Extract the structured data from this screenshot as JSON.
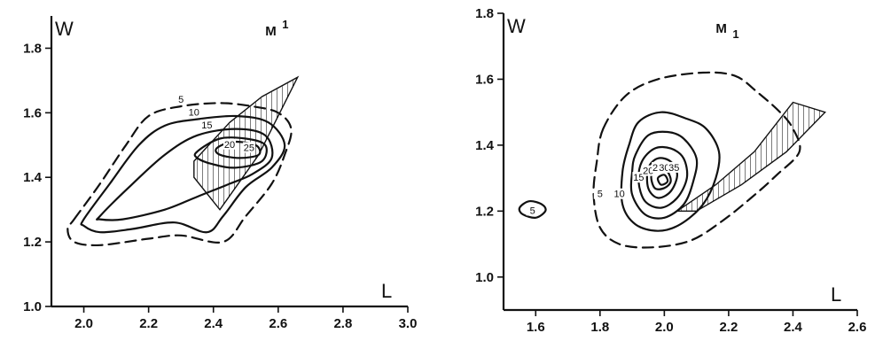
{
  "chart_data": [
    {
      "type": "contour",
      "title": "M",
      "title_marker": "1",
      "title_marker_position": "superscript",
      "xlabel": "L",
      "ylabel": "W",
      "xlim": [
        1.9,
        3.0
      ],
      "ylim": [
        1.0,
        1.9
      ],
      "xticks": [
        2.0,
        2.2,
        2.4,
        2.6,
        2.8,
        3.0
      ],
      "yticks": [
        1.0,
        1.2,
        1.4,
        1.6,
        1.8
      ],
      "xtick_labels": [
        "2.0",
        "2.2",
        "2.4",
        "2.6",
        "2.8",
        "3.0"
      ],
      "ytick_labels": [
        "1.0",
        "1.2",
        "1.4",
        "1.6",
        "1.8"
      ],
      "contours": [
        {
          "level": "5",
          "dashed": true,
          "points": [
            [
              1.97,
              1.27
            ],
            [
              2.05,
              1.38
            ],
            [
              2.13,
              1.5
            ],
            [
              2.2,
              1.59
            ],
            [
              2.3,
              1.62
            ],
            [
              2.42,
              1.63
            ],
            [
              2.52,
              1.62
            ],
            [
              2.6,
              1.6
            ],
            [
              2.64,
              1.55
            ],
            [
              2.62,
              1.47
            ],
            [
              2.58,
              1.38
            ],
            [
              2.5,
              1.28
            ],
            [
              2.43,
              1.2
            ],
            [
              2.3,
              1.22
            ],
            [
              2.2,
              1.21
            ],
            [
              2.05,
              1.19
            ],
            [
              1.97,
              1.2
            ],
            [
              1.95,
              1.24
            ]
          ]
        },
        {
          "level": "10",
          "dashed": false,
          "points": [
            [
              2.0,
              1.27
            ],
            [
              2.08,
              1.38
            ],
            [
              2.17,
              1.5
            ],
            [
              2.25,
              1.56
            ],
            [
              2.35,
              1.58
            ],
            [
              2.47,
              1.59
            ],
            [
              2.57,
              1.57
            ],
            [
              2.62,
              1.5
            ],
            [
              2.58,
              1.43
            ],
            [
              2.5,
              1.37
            ],
            [
              2.43,
              1.28
            ],
            [
              2.38,
              1.23
            ],
            [
              2.28,
              1.26
            ],
            [
              2.15,
              1.24
            ],
            [
              2.05,
              1.23
            ],
            [
              2.0,
              1.25
            ]
          ]
        },
        {
          "level": "15",
          "dashed": false,
          "points": [
            [
              2.05,
              1.28
            ],
            [
              2.14,
              1.37
            ],
            [
              2.25,
              1.47
            ],
            [
              2.35,
              1.53
            ],
            [
              2.47,
              1.55
            ],
            [
              2.56,
              1.53
            ],
            [
              2.58,
              1.46
            ],
            [
              2.52,
              1.41
            ],
            [
              2.45,
              1.38
            ],
            [
              2.35,
              1.34
            ],
            [
              2.25,
              1.3
            ],
            [
              2.12,
              1.27
            ],
            [
              2.05,
              1.27
            ]
          ]
        },
        {
          "level": "20",
          "dashed": false,
          "points": [
            [
              2.35,
              1.48
            ],
            [
              2.42,
              1.52
            ],
            [
              2.5,
              1.52
            ],
            [
              2.56,
              1.5
            ],
            [
              2.55,
              1.45
            ],
            [
              2.47,
              1.43
            ],
            [
              2.4,
              1.44
            ],
            [
              2.35,
              1.46
            ]
          ]
        },
        {
          "level": "25",
          "dashed": false,
          "points": [
            [
              2.41,
              1.49
            ],
            [
              2.46,
              1.51
            ],
            [
              2.53,
              1.5
            ],
            [
              2.54,
              1.47
            ],
            [
              2.48,
              1.46
            ],
            [
              2.42,
              1.47
            ]
          ]
        }
      ],
      "contour_label_positions": [
        [
          2.3,
          1.64
        ],
        [
          2.34,
          1.6
        ],
        [
          2.38,
          1.56
        ],
        [
          2.45,
          1.5
        ],
        [
          2.51,
          1.49
        ]
      ],
      "hatched_region": [
        [
          2.34,
          1.45
        ],
        [
          2.45,
          1.57
        ],
        [
          2.55,
          1.65
        ],
        [
          2.66,
          1.71
        ],
        [
          2.54,
          1.47
        ],
        [
          2.42,
          1.3
        ],
        [
          2.34,
          1.4
        ]
      ]
    },
    {
      "type": "contour",
      "title": "M",
      "title_marker": "1",
      "title_marker_position": "subscript",
      "xlabel": "L",
      "ylabel": "W",
      "xlim": [
        1.5,
        2.6
      ],
      "ylim": [
        0.9,
        1.8
      ],
      "xticks": [
        1.6,
        1.8,
        2.0,
        2.2,
        2.4,
        2.6
      ],
      "yticks": [
        1.0,
        1.2,
        1.4,
        1.6,
        1.8
      ],
      "xtick_labels": [
        "1.6",
        "1.8",
        "2.0",
        "2.2",
        "2.4",
        "2.6"
      ],
      "ytick_labels": [
        "1.0",
        "1.2",
        "1.4",
        "1.6",
        "1.8"
      ],
      "contours": [
        {
          "level": "5",
          "dashed": true,
          "points": [
            [
              1.81,
              1.45
            ],
            [
              1.88,
              1.55
            ],
            [
              1.98,
              1.6
            ],
            [
              2.12,
              1.62
            ],
            [
              2.22,
              1.61
            ],
            [
              2.29,
              1.56
            ],
            [
              2.36,
              1.5
            ],
            [
              2.4,
              1.45
            ],
            [
              2.42,
              1.38
            ],
            [
              2.35,
              1.31
            ],
            [
              2.27,
              1.24
            ],
            [
              2.18,
              1.17
            ],
            [
              2.08,
              1.11
            ],
            [
              1.96,
              1.09
            ],
            [
              1.86,
              1.1
            ],
            [
              1.8,
              1.15
            ],
            [
              1.78,
              1.25
            ],
            [
              1.79,
              1.35
            ]
          ]
        },
        {
          "level": "10",
          "dashed": false,
          "points": [
            [
              1.89,
              1.4
            ],
            [
              1.92,
              1.47
            ],
            [
              1.99,
              1.5
            ],
            [
              2.07,
              1.48
            ],
            [
              2.13,
              1.45
            ],
            [
              2.17,
              1.38
            ],
            [
              2.16,
              1.3
            ],
            [
              2.12,
              1.22
            ],
            [
              2.05,
              1.16
            ],
            [
              1.98,
              1.14
            ],
            [
              1.91,
              1.16
            ],
            [
              1.87,
              1.22
            ],
            [
              1.87,
              1.32
            ]
          ]
        },
        {
          "level": "15",
          "dashed": false,
          "points": [
            [
              1.91,
              1.37
            ],
            [
              1.95,
              1.43
            ],
            [
              2.01,
              1.44
            ],
            [
              2.06,
              1.42
            ],
            [
              2.1,
              1.36
            ],
            [
              2.09,
              1.29
            ],
            [
              2.06,
              1.22
            ],
            [
              2.0,
              1.18
            ],
            [
              1.94,
              1.19
            ],
            [
              1.9,
              1.25
            ],
            [
              1.9,
              1.32
            ]
          ]
        },
        {
          "level": "20",
          "dashed": false,
          "points": [
            [
              1.93,
              1.35
            ],
            [
              1.97,
              1.39
            ],
            [
              2.02,
              1.39
            ],
            [
              2.06,
              1.36
            ],
            [
              2.07,
              1.3
            ],
            [
              2.04,
              1.24
            ],
            [
              1.99,
              1.21
            ],
            [
              1.94,
              1.23
            ],
            [
              1.92,
              1.29
            ]
          ]
        },
        {
          "level": "25",
          "dashed": false,
          "points": [
            [
              1.95,
              1.33
            ],
            [
              1.98,
              1.36
            ],
            [
              2.02,
              1.35
            ],
            [
              2.04,
              1.31
            ],
            [
              2.02,
              1.26
            ],
            [
              1.98,
              1.24
            ],
            [
              1.95,
              1.27
            ]
          ]
        },
        {
          "level": "30",
          "dashed": false,
          "points": [
            [
              1.96,
              1.31
            ],
            [
              1.99,
              1.33
            ],
            [
              2.01,
              1.32
            ],
            [
              2.02,
              1.29
            ],
            [
              2.0,
              1.27
            ],
            [
              1.97,
              1.27
            ]
          ]
        },
        {
          "level": "35",
          "dashed": false,
          "points": [
            [
              1.98,
              1.3
            ],
            [
              2.0,
              1.31
            ],
            [
              2.01,
              1.29
            ],
            [
              1.99,
              1.28
            ]
          ]
        },
        {
          "level": "5",
          "dashed": false,
          "points": [
            [
              1.55,
              1.21
            ],
            [
              1.58,
              1.23
            ],
            [
              1.62,
              1.22
            ],
            [
              1.63,
              1.2
            ],
            [
              1.6,
              1.18
            ],
            [
              1.56,
              1.19
            ]
          ]
        }
      ],
      "contour_label_positions": [
        [
          1.8,
          1.25
        ],
        [
          1.86,
          1.25
        ],
        [
          1.92,
          1.3
        ],
        [
          1.95,
          1.32
        ],
        [
          1.98,
          1.33
        ],
        [
          2.0,
          1.33
        ],
        [
          2.03,
          1.33
        ],
        [
          1.59,
          1.2
        ]
      ],
      "hatched_region": [
        [
          2.04,
          1.2
        ],
        [
          2.16,
          1.28
        ],
        [
          2.28,
          1.38
        ],
        [
          2.4,
          1.53
        ],
        [
          2.5,
          1.5
        ],
        [
          2.38,
          1.38
        ],
        [
          2.24,
          1.28
        ],
        [
          2.1,
          1.2
        ]
      ]
    }
  ]
}
